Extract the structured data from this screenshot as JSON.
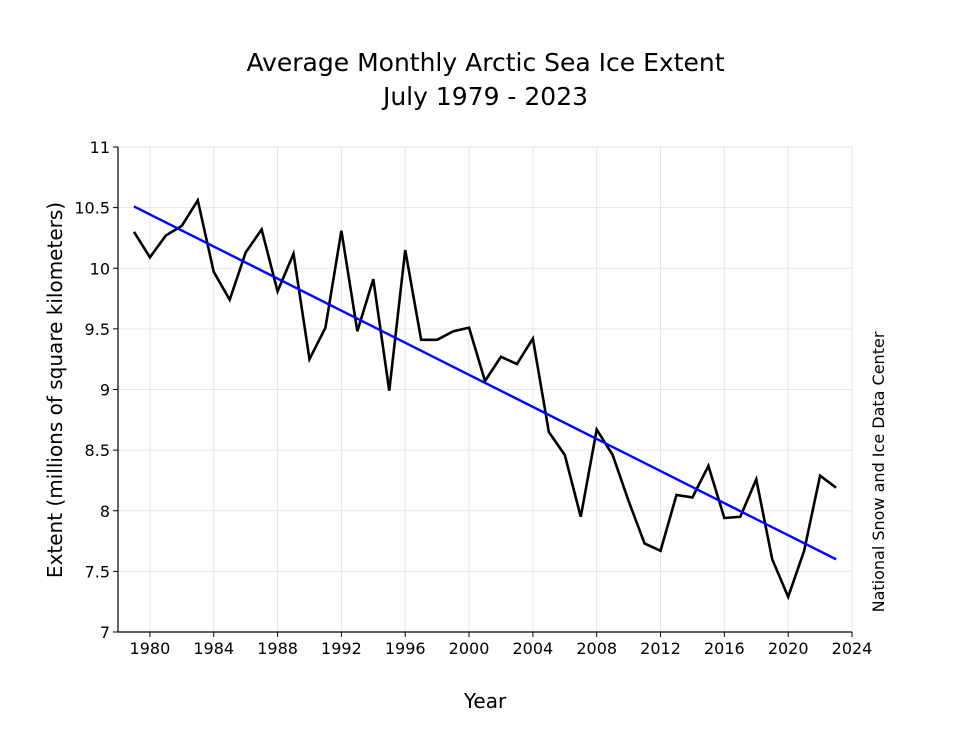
{
  "chart_data": {
    "type": "line",
    "title": "Average Monthly Arctic Sea Ice Extent",
    "subtitle": "July 1979 - 2023",
    "xlabel": "Year",
    "ylabel": "Extent (millions of square kilometers)",
    "credit": "National Snow and Ice Data Center",
    "xlim": [
      1978,
      2024
    ],
    "ylim": [
      7,
      11
    ],
    "x_ticks": [
      1980,
      1984,
      1988,
      1992,
      1996,
      2000,
      2004,
      2008,
      2012,
      2016,
      2020,
      2024
    ],
    "y_ticks": [
      7,
      7.5,
      8,
      8.5,
      9,
      9.5,
      10,
      10.5,
      11
    ],
    "grid": true,
    "colors": {
      "series": "#000000",
      "trend": "#0000ff",
      "grid": "#e6e6e6"
    },
    "series": [
      {
        "x": [
          1979,
          1980,
          1981,
          1982,
          1983,
          1984,
          1985,
          1986,
          1987,
          1988,
          1989,
          1990,
          1991,
          1992,
          1993,
          1994,
          1995,
          1996,
          1997,
          1998,
          1999,
          2000,
          2001,
          2002,
          2003,
          2004,
          2005,
          2006,
          2007,
          2008,
          2009,
          2010,
          2011,
          2012,
          2013,
          2014,
          2015,
          2016,
          2017,
          2018,
          2019,
          2020,
          2021,
          2022,
          2023
        ],
        "values": [
          10.3,
          10.09,
          10.27,
          10.35,
          10.56,
          9.97,
          9.74,
          10.13,
          10.32,
          9.81,
          10.12,
          9.25,
          9.51,
          10.31,
          9.48,
          9.91,
          8.99,
          10.15,
          9.41,
          9.41,
          9.48,
          9.51,
          9.07,
          9.27,
          9.21,
          9.42,
          8.65,
          8.46,
          7.95,
          8.67,
          8.46,
          8.08,
          7.73,
          7.67,
          8.13,
          8.11,
          8.37,
          7.94,
          7.95,
          8.26,
          7.6,
          7.29,
          7.67,
          8.29,
          8.19
        ]
      },
      {
        "x": [
          1979,
          2023
        ],
        "values": [
          10.51,
          7.6
        ]
      }
    ]
  }
}
